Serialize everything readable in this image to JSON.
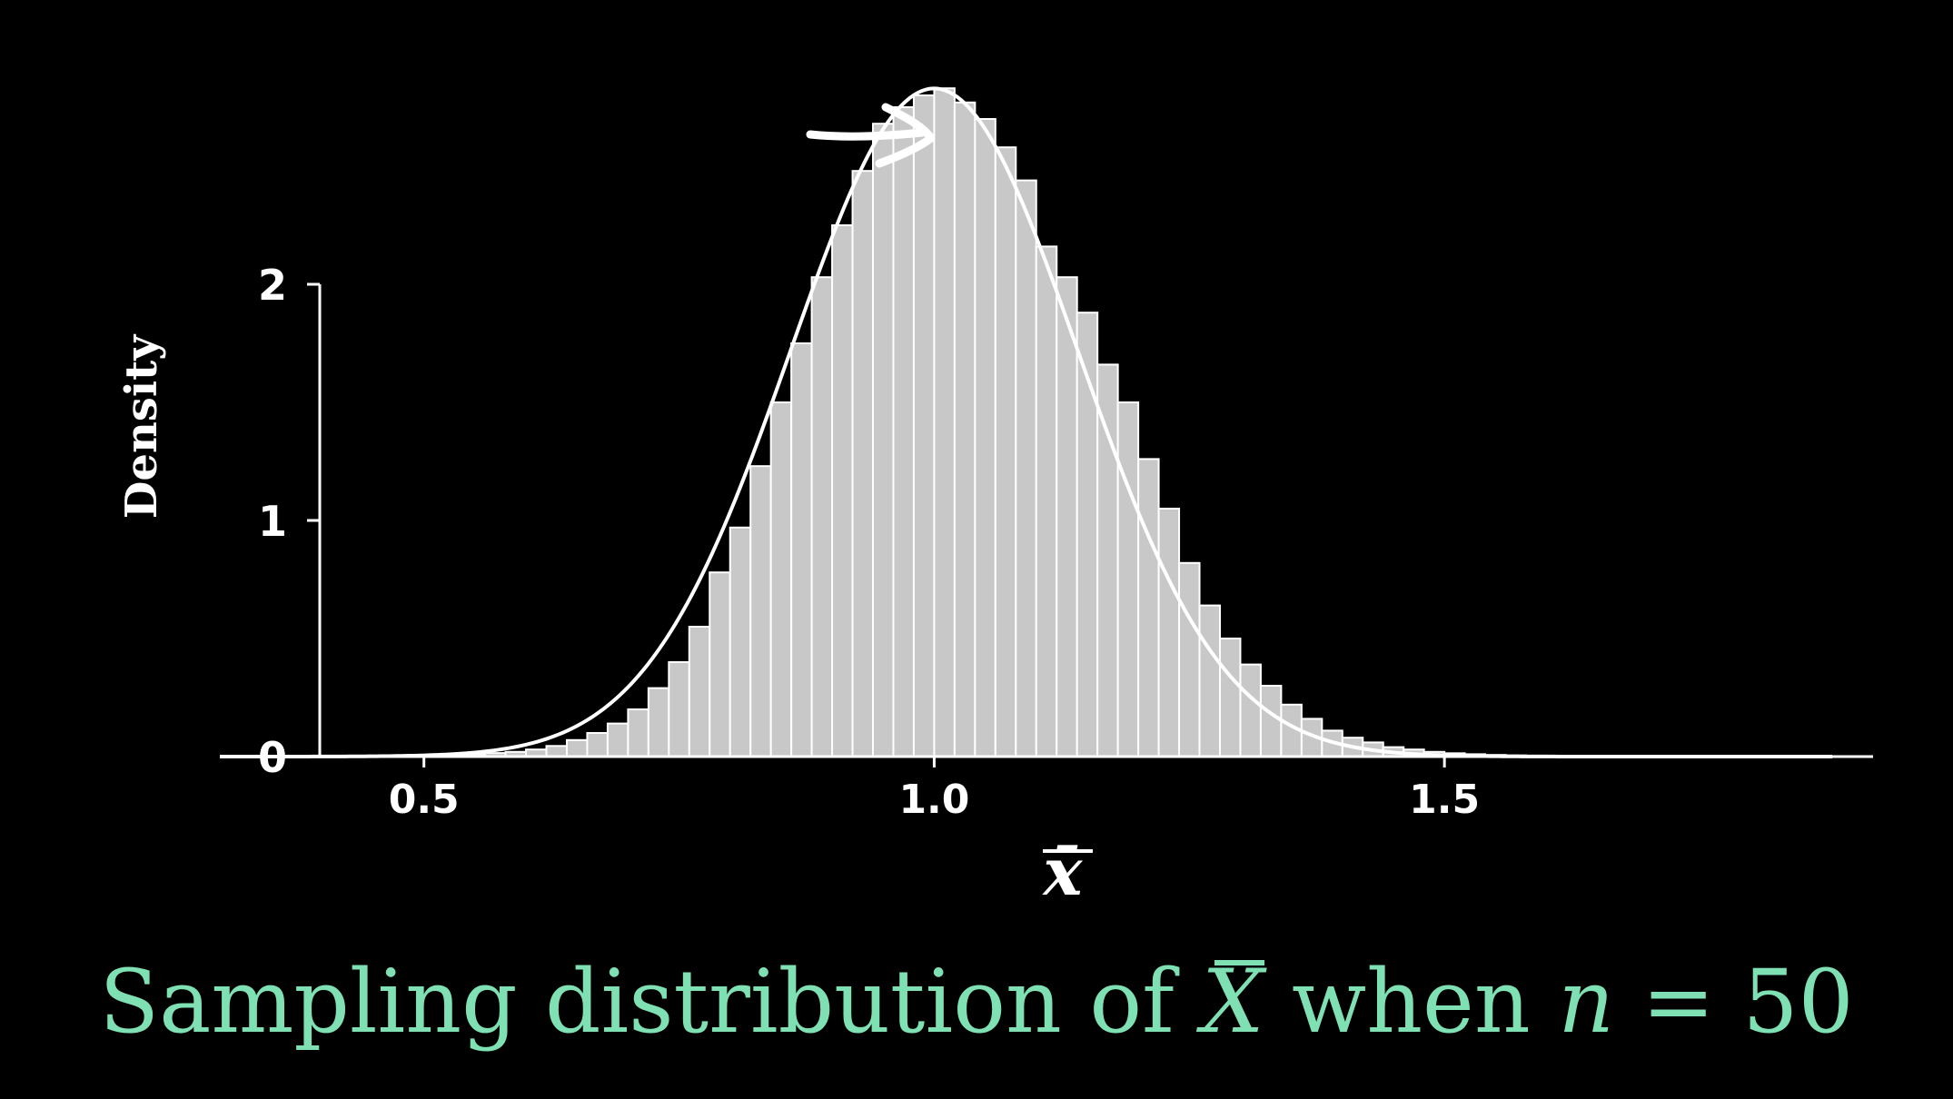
{
  "chart_data": {
    "type": "bar",
    "xlabel": "x̄",
    "ylabel": "Density",
    "xlim": [
      0.3,
      1.92
    ],
    "ylim": [
      0,
      2.85
    ],
    "x_ticks": [
      "0.5",
      "1.0",
      "1.5"
    ],
    "x_tick_values": [
      0.5,
      1.0,
      1.5
    ],
    "y_ticks": [
      "0",
      "1",
      "2"
    ],
    "y_tick_values": [
      0,
      1,
      2
    ],
    "bin_width": 0.02,
    "bin_starts": [
      0.5,
      0.52,
      0.54,
      0.56,
      0.58,
      0.6,
      0.62,
      0.64,
      0.66,
      0.68,
      0.7,
      0.72,
      0.74,
      0.76,
      0.78,
      0.8,
      0.82,
      0.84,
      0.86,
      0.88,
      0.9,
      0.92,
      0.94,
      0.96,
      0.98,
      1.0,
      1.02,
      1.04,
      1.06,
      1.08,
      1.1,
      1.12,
      1.14,
      1.16,
      1.18,
      1.2,
      1.22,
      1.24,
      1.26,
      1.28,
      1.3,
      1.32,
      1.34,
      1.36,
      1.38,
      1.4,
      1.42,
      1.44,
      1.46,
      1.48,
      1.5,
      1.52,
      1.54,
      1.56,
      1.58,
      1.6,
      1.62,
      1.64
    ],
    "values": [
      0.003,
      0.006,
      0.01,
      0.015,
      0.02,
      0.03,
      0.045,
      0.07,
      0.1,
      0.14,
      0.2,
      0.29,
      0.4,
      0.55,
      0.78,
      0.97,
      1.23,
      1.5,
      1.75,
      2.03,
      2.25,
      2.48,
      2.68,
      2.75,
      2.8,
      2.83,
      2.77,
      2.7,
      2.58,
      2.44,
      2.16,
      2.03,
      1.88,
      1.66,
      1.5,
      1.26,
      1.05,
      0.82,
      0.64,
      0.5,
      0.39,
      0.3,
      0.22,
      0.16,
      0.11,
      0.08,
      0.06,
      0.04,
      0.03,
      0.02,
      0.014,
      0.01,
      0.007,
      0.005,
      0.004,
      0.003,
      0.002,
      0.002
    ],
    "density_curve": {
      "type": "normal",
      "mean": 1.0,
      "sd": 0.141,
      "x_range": [
        0.3,
        1.92
      ]
    },
    "colors": {
      "background": "#000000",
      "bars": "#c8c8c8",
      "bar_edges": "#ffffff",
      "curve": "#ffffff",
      "axes": "#ffffff",
      "annotation": "#ffffff"
    },
    "annotation": {
      "type": "hand-drawn-arrow",
      "points_to": "peak-bar"
    }
  },
  "caption": {
    "prefix": "Sampling distribution of ",
    "symbol": "X",
    "middle": " when ",
    "variable": "n",
    "equals": " = ",
    "value": "50",
    "color": "#7fe0b4"
  }
}
